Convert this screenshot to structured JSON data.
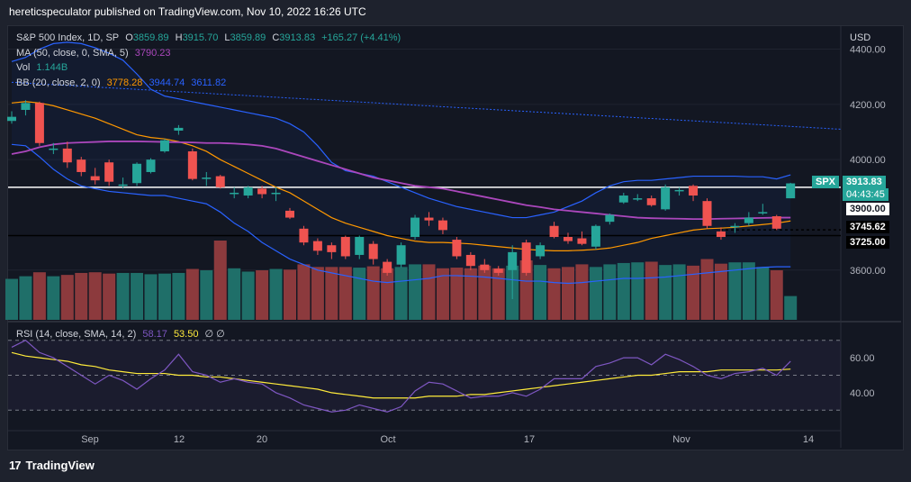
{
  "header": {
    "publisher_line": "hereticspeculator published on TradingView.com, Nov 10, 2022 16:26 UTC"
  },
  "legend": {
    "symbol": "S&P 500 Index, 1D, SP",
    "o_label": "O",
    "o_val": "3859.89",
    "h_label": "H",
    "h_val": "3915.70",
    "l_label": "L",
    "l_val": "3859.89",
    "c_label": "C",
    "c_val": "3913.83",
    "change": "+165.27 (+4.41%)",
    "ma_label": "MA (50, close, 0, SMA, 5)",
    "ma_val": "3790.23",
    "vol_label": "Vol",
    "vol_val": "1.144B",
    "bb_label": "BB (20, close, 2, 0)",
    "bb_basis": "3778.28",
    "bb_upper": "3944.74",
    "bb_lower": "3611.82",
    "rsi_label": "RSI (14, close, SMA, 14, 2)",
    "rsi_val": "58.17",
    "rsi_sma": "53.50",
    "rsi_empty": "∅ ∅"
  },
  "axis": {
    "currency": "USD"
  },
  "price_tags": {
    "symbol": "SPX",
    "last": "3913.83",
    "countdown": "04:43:45",
    "level1": "3900.00",
    "level2": "3745.62",
    "level3": "3725.00"
  },
  "footer": {
    "brand": "TradingView",
    "logo_glyph": "17"
  },
  "colors": {
    "up": "#26a69a",
    "down": "#ef5350",
    "ma": "#ab47bc",
    "bb_basis": "#ff9800",
    "bb_band": "#2962ff",
    "rsi": "#7e57c2",
    "rsi_sma": "#ffeb3b",
    "vol_up": "#1f6f69",
    "vol_down": "#8c3a3d"
  },
  "chart_data": {
    "type": "candlestick",
    "x_tick_labels": [
      "Sep",
      "12",
      "20",
      "Oct",
      "17",
      "Nov",
      "14"
    ],
    "y_axis": {
      "ticks": [
        3600,
        4000,
        4200,
        4400
      ],
      "tick_labels": [
        "3600.00",
        "4000.00",
        "4200.00",
        "4400.00"
      ],
      "range": [
        3420,
        4480
      ]
    },
    "rsi_axis": {
      "ticks": [
        40,
        60
      ],
      "tick_labels": [
        "40.00",
        "60.00"
      ],
      "bands": [
        30,
        50,
        70
      ],
      "range": [
        25,
        75
      ]
    },
    "horizontal_lines": [
      3900,
      3725
    ],
    "trendline": {
      "from": 4280,
      "to": 4110
    },
    "candles": [
      {
        "o": 4140,
        "c": 4155,
        "h": 4175,
        "l": 4130
      },
      {
        "o": 4180,
        "c": 4205,
        "h": 4215,
        "l": 4160
      },
      {
        "o": 4205,
        "c": 4060,
        "h": 4210,
        "l": 4050
      },
      {
        "o": 4040,
        "c": 4040,
        "h": 4060,
        "l": 4020
      },
      {
        "o": 4040,
        "c": 3990,
        "h": 4065,
        "l": 3970
      },
      {
        "o": 4000,
        "c": 3955,
        "h": 4010,
        "l": 3940
      },
      {
        "o": 3940,
        "c": 3925,
        "h": 3970,
        "l": 3910
      },
      {
        "o": 3990,
        "c": 3920,
        "h": 4000,
        "l": 3905
      },
      {
        "o": 3910,
        "c": 3910,
        "h": 3935,
        "l": 3895
      },
      {
        "o": 3915,
        "c": 3985,
        "h": 3990,
        "l": 3905
      },
      {
        "o": 3955,
        "c": 4000,
        "h": 4005,
        "l": 3950
      },
      {
        "o": 4030,
        "c": 4070,
        "h": 4075,
        "l": 4025
      },
      {
        "o": 4105,
        "c": 4115,
        "h": 4125,
        "l": 4090
      },
      {
        "o": 4030,
        "c": 3930,
        "h": 4040,
        "l": 3925
      },
      {
        "o": 3930,
        "c": 3935,
        "h": 3955,
        "l": 3905
      },
      {
        "o": 3940,
        "c": 3900,
        "h": 3945,
        "l": 3895
      },
      {
        "o": 3880,
        "c": 3880,
        "h": 3900,
        "l": 3860
      },
      {
        "o": 3870,
        "c": 3900,
        "h": 3905,
        "l": 3860
      },
      {
        "o": 3895,
        "c": 3875,
        "h": 3905,
        "l": 3860
      },
      {
        "o": 3880,
        "c": 3880,
        "h": 3900,
        "l": 3850
      },
      {
        "o": 3815,
        "c": 3790,
        "h": 3825,
        "l": 3785
      },
      {
        "o": 3750,
        "c": 3700,
        "h": 3760,
        "l": 3690
      },
      {
        "o": 3705,
        "c": 3670,
        "h": 3715,
        "l": 3655
      },
      {
        "o": 3690,
        "c": 3665,
        "h": 3700,
        "l": 3640
      },
      {
        "o": 3720,
        "c": 3650,
        "h": 3725,
        "l": 3640
      },
      {
        "o": 3655,
        "c": 3720,
        "h": 3725,
        "l": 3640
      },
      {
        "o": 3695,
        "c": 3640,
        "h": 3705,
        "l": 3620
      },
      {
        "o": 3630,
        "c": 3590,
        "h": 3640,
        "l": 3580
      },
      {
        "o": 3620,
        "c": 3690,
        "h": 3700,
        "l": 3610
      },
      {
        "o": 3720,
        "c": 3790,
        "h": 3800,
        "l": 3710
      },
      {
        "o": 3790,
        "c": 3780,
        "h": 3810,
        "l": 3760
      },
      {
        "o": 3780,
        "c": 3745,
        "h": 3790,
        "l": 3730
      },
      {
        "o": 3710,
        "c": 3650,
        "h": 3720,
        "l": 3640
      },
      {
        "o": 3655,
        "c": 3615,
        "h": 3665,
        "l": 3600
      },
      {
        "o": 3620,
        "c": 3600,
        "h": 3640,
        "l": 3590
      },
      {
        "o": 3605,
        "c": 3590,
        "h": 3615,
        "l": 3580
      },
      {
        "o": 3600,
        "c": 3665,
        "h": 3690,
        "l": 3495
      },
      {
        "o": 3700,
        "c": 3590,
        "h": 3710,
        "l": 3580
      },
      {
        "o": 3650,
        "c": 3690,
        "h": 3700,
        "l": 3640
      },
      {
        "o": 3760,
        "c": 3720,
        "h": 3775,
        "l": 3715
      },
      {
        "o": 3720,
        "c": 3705,
        "h": 3735,
        "l": 3695
      },
      {
        "o": 3715,
        "c": 3695,
        "h": 3740,
        "l": 3690
      },
      {
        "o": 3685,
        "c": 3760,
        "h": 3765,
        "l": 3675
      },
      {
        "o": 3775,
        "c": 3800,
        "h": 3805,
        "l": 3765
      },
      {
        "o": 3845,
        "c": 3870,
        "h": 3880,
        "l": 3840
      },
      {
        "o": 3860,
        "c": 3860,
        "h": 3875,
        "l": 3850
      },
      {
        "o": 3860,
        "c": 3835,
        "h": 3870,
        "l": 3830
      },
      {
        "o": 3820,
        "c": 3900,
        "h": 3910,
        "l": 3815
      },
      {
        "o": 3890,
        "c": 3890,
        "h": 3900,
        "l": 3870
      },
      {
        "o": 3905,
        "c": 3870,
        "h": 3910,
        "l": 3850
      },
      {
        "o": 3850,
        "c": 3760,
        "h": 3860,
        "l": 3750
      },
      {
        "o": 3740,
        "c": 3720,
        "h": 3755,
        "l": 3710
      },
      {
        "o": 3760,
        "c": 3760,
        "h": 3770,
        "l": 3735
      },
      {
        "o": 3770,
        "c": 3790,
        "h": 3810,
        "l": 3760
      },
      {
        "o": 3810,
        "c": 3810,
        "h": 3840,
        "l": 3800
      },
      {
        "o": 3795,
        "c": 3750,
        "h": 3800,
        "l": 3745
      },
      {
        "o": 3860,
        "c": 3914,
        "h": 3916,
        "l": 3860
      }
    ],
    "volume": [
      0.62,
      0.66,
      0.72,
      0.66,
      0.68,
      0.71,
      0.72,
      0.7,
      0.71,
      0.71,
      0.69,
      0.7,
      0.71,
      0.77,
      0.75,
      1.2,
      0.78,
      0.73,
      0.75,
      0.77,
      0.76,
      0.84,
      0.8,
      0.8,
      0.8,
      0.79,
      0.81,
      0.78,
      0.8,
      0.84,
      0.84,
      0.78,
      0.79,
      0.78,
      0.82,
      0.78,
      0.82,
      0.9,
      0.83,
      0.78,
      0.8,
      0.84,
      0.8,
      0.84,
      0.86,
      0.87,
      0.88,
      0.83,
      0.84,
      0.82,
      0.92,
      0.85,
      0.87,
      0.87,
      0.8,
      0.75,
      0.36
    ],
    "ma50": [
      4020,
      4030,
      4045,
      4055,
      4060,
      4062,
      4064,
      4066,
      4066,
      4066,
      4065,
      4064,
      4063,
      4062,
      4060,
      4060,
      4058,
      4055,
      4050,
      4040,
      4025,
      4010,
      3995,
      3980,
      3965,
      3950,
      3935,
      3925,
      3915,
      3905,
      3900,
      3895,
      3885,
      3875,
      3865,
      3855,
      3845,
      3835,
      3828,
      3820,
      3815,
      3810,
      3805,
      3800,
      3795,
      3790,
      3788,
      3787,
      3786,
      3785,
      3785,
      3786,
      3787,
      3788,
      3789,
      3790,
      3790
    ],
    "bb_basis": [
      4205,
      4210,
      4205,
      4195,
      4180,
      4165,
      4150,
      4130,
      4110,
      4090,
      4080,
      4075,
      4065,
      4050,
      4030,
      4000,
      3975,
      3950,
      3925,
      3900,
      3880,
      3850,
      3820,
      3790,
      3770,
      3755,
      3740,
      3725,
      3715,
      3705,
      3700,
      3700,
      3698,
      3695,
      3690,
      3685,
      3680,
      3675,
      3672,
      3670,
      3670,
      3672,
      3675,
      3680,
      3690,
      3700,
      3715,
      3725,
      3735,
      3745,
      3750,
      3752,
      3755,
      3760,
      3765,
      3770,
      3778
    ],
    "bb_upper": [
      4355,
      4370,
      4400,
      4420,
      4425,
      4420,
      4405,
      4385,
      4360,
      4310,
      4255,
      4230,
      4220,
      4210,
      4200,
      4190,
      4180,
      4170,
      4160,
      4150,
      4130,
      4100,
      4050,
      3990,
      3960,
      3950,
      3940,
      3920,
      3900,
      3880,
      3860,
      3845,
      3830,
      3820,
      3810,
      3800,
      3790,
      3790,
      3800,
      3810,
      3830,
      3850,
      3880,
      3905,
      3920,
      3925,
      3925,
      3930,
      3935,
      3940,
      3940,
      3940,
      3940,
      3938,
      3938,
      3930,
      3945
    ],
    "bb_lower": [
      4055,
      4050,
      4010,
      3965,
      3930,
      3905,
      3895,
      3885,
      3880,
      3875,
      3870,
      3870,
      3860,
      3850,
      3840,
      3810,
      3770,
      3740,
      3700,
      3670,
      3640,
      3620,
      3600,
      3590,
      3580,
      3570,
      3560,
      3555,
      3560,
      3565,
      3570,
      3580,
      3580,
      3578,
      3575,
      3570,
      3565,
      3560,
      3560,
      3555,
      3552,
      3555,
      3560,
      3565,
      3570,
      3570,
      3572,
      3575,
      3580,
      3585,
      3590,
      3595,
      3600,
      3605,
      3610,
      3612,
      3612
    ],
    "rsi": [
      66,
      70,
      63,
      60,
      55,
      50,
      45,
      50,
      47,
      42,
      48,
      53,
      62,
      52,
      50,
      46,
      48,
      46,
      45,
      40,
      37,
      33,
      31,
      29,
      30,
      33,
      31,
      29,
      32,
      41,
      46,
      45,
      41,
      37,
      38,
      38,
      40,
      38,
      42,
      48,
      48,
      48,
      55,
      57,
      60,
      60,
      56,
      62,
      59,
      55,
      50,
      48,
      51,
      52,
      54,
      50,
      58
    ],
    "rsi_sma": [
      63,
      61,
      60,
      59,
      58,
      56,
      55,
      53,
      52,
      51,
      51,
      51,
      50,
      50,
      49,
      49,
      48,
      47,
      46,
      45,
      44,
      43,
      42,
      40,
      39,
      38,
      37,
      37,
      37,
      37,
      38,
      38,
      38,
      39,
      39,
      40,
      41,
      42,
      43,
      44,
      45,
      46,
      47,
      48,
      49,
      50,
      50,
      51,
      52,
      52,
      52,
      53,
      53,
      53,
      53,
      53,
      53.5
    ]
  }
}
